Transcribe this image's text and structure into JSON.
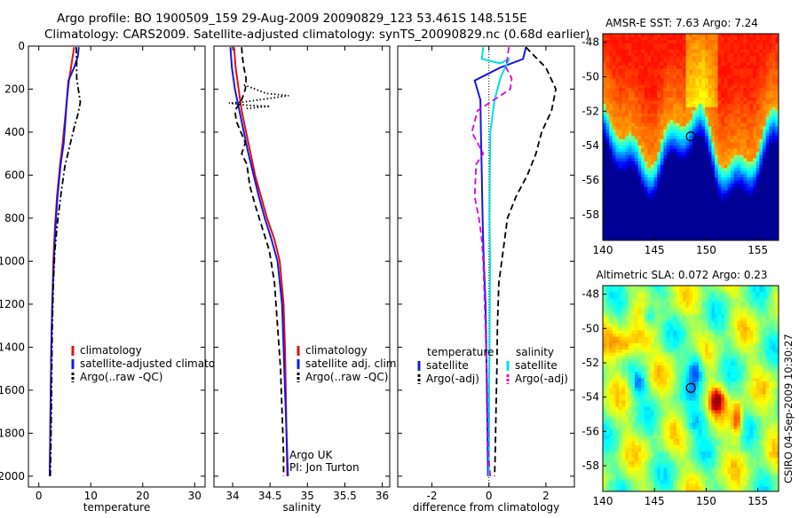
{
  "header": {
    "line1": "Argo profile: BO 1900509_159 29-Aug-2009 20090829_123 53.461S 148.515E",
    "line2": "Climatology: CARS2009. Satellite-adjusted climatology: synTS_20090829.nc (0.68d earlier)"
  },
  "credit": "CSIRO 04-Sep-2009 10:30:27",
  "colors": {
    "climatology": "#e01010",
    "satellite": "#1818e0",
    "argo": "#000000",
    "sat_salinity": "#00e0e0",
    "argo_salinity": "#e000e0"
  },
  "chart_data": [
    {
      "type": "line",
      "id": "temperature",
      "xlabel": "temperature",
      "ylabel": "",
      "xlim": [
        -2,
        32
      ],
      "ylim": [
        2050,
        0
      ],
      "y_reversed": true,
      "xticks": [
        "0",
        "10",
        "20",
        "30"
      ],
      "yticks": [
        "0",
        "200",
        "400",
        "600",
        "800",
        "1000",
        "1200",
        "1400",
        "1600",
        "1800",
        "2000"
      ],
      "legend": [
        "climatology",
        "satellite-adjusted climatology",
        "Argo(..raw -QC)"
      ],
      "series": [
        {
          "name": "climatology",
          "color": "#e01010",
          "style": "solid",
          "points": [
            [
              6.8,
              5
            ],
            [
              6.5,
              50
            ],
            [
              6.2,
              100
            ],
            [
              5.8,
              160
            ],
            [
              5.4,
              250
            ],
            [
              5.0,
              350
            ],
            [
              4.6,
              450
            ],
            [
              4.1,
              550
            ],
            [
              3.5,
              700
            ],
            [
              3.1,
              850
            ],
            [
              2.8,
              1000
            ],
            [
              2.6,
              1200
            ],
            [
              2.4,
              1400
            ],
            [
              2.3,
              1600
            ],
            [
              2.2,
              1800
            ],
            [
              2.1,
              2000
            ]
          ]
        },
        {
          "name": "satellite-adjusted climatology",
          "color": "#1818e0",
          "style": "solid",
          "points": [
            [
              7.7,
              5
            ],
            [
              7.5,
              50
            ],
            [
              6.8,
              100
            ],
            [
              5.7,
              160
            ],
            [
              5.4,
              250
            ],
            [
              5.1,
              350
            ],
            [
              4.8,
              450
            ],
            [
              4.2,
              550
            ],
            [
              3.6,
              700
            ],
            [
              3.2,
              850
            ],
            [
              2.9,
              1000
            ],
            [
              2.6,
              1200
            ],
            [
              2.4,
              1400
            ],
            [
              2.3,
              1600
            ],
            [
              2.2,
              1800
            ],
            [
              2.1,
              2000
            ]
          ]
        },
        {
          "name": "Argo(..raw -QC)",
          "color": "#000000",
          "style": "dashdot",
          "points": [
            [
              7.2,
              5
            ],
            [
              7.3,
              80
            ],
            [
              7.3,
              150
            ],
            [
              7.6,
              200
            ],
            [
              8.0,
              260
            ],
            [
              7.5,
              320
            ],
            [
              6.8,
              380
            ],
            [
              5.9,
              470
            ],
            [
              5.0,
              560
            ],
            [
              4.3,
              680
            ],
            [
              3.6,
              820
            ],
            [
              3.1,
              950
            ],
            [
              2.8,
              1100
            ],
            [
              2.6,
              1300
            ],
            [
              2.5,
              1500
            ],
            [
              2.4,
              1700
            ],
            [
              2.3,
              1900
            ],
            [
              2.2,
              2000
            ]
          ]
        }
      ]
    },
    {
      "type": "line",
      "id": "salinity",
      "xlabel": "salinity",
      "ylabel": "",
      "xlim": [
        33.75,
        36.1
      ],
      "ylim": [
        2050,
        0
      ],
      "y_reversed": true,
      "xticks": [
        "34",
        "34.5",
        "35",
        "35.5",
        "36"
      ],
      "legend": [
        "climatology",
        "satellite adj. clim.",
        "Argo(..raw -QC)"
      ],
      "annotation": [
        "Argo UK",
        "PI: Jon Turton"
      ],
      "series": [
        {
          "name": "climatology",
          "color": "#e01010",
          "style": "solid",
          "points": [
            [
              34.02,
              5
            ],
            [
              34.04,
              100
            ],
            [
              34.08,
              200
            ],
            [
              34.12,
              300
            ],
            [
              34.18,
              400
            ],
            [
              34.24,
              500
            ],
            [
              34.3,
              600
            ],
            [
              34.38,
              700
            ],
            [
              34.46,
              800
            ],
            [
              34.56,
              900
            ],
            [
              34.63,
              1000
            ],
            [
              34.68,
              1200
            ],
            [
              34.7,
              1400
            ],
            [
              34.71,
              1600
            ],
            [
              34.72,
              1800
            ],
            [
              34.73,
              2000
            ]
          ]
        },
        {
          "name": "satellite adj. clim.",
          "color": "#1818e0",
          "style": "solid",
          "points": [
            [
              33.97,
              5
            ],
            [
              33.99,
              100
            ],
            [
              34.03,
              200
            ],
            [
              34.09,
              300
            ],
            [
              34.15,
              400
            ],
            [
              34.21,
              500
            ],
            [
              34.28,
              600
            ],
            [
              34.35,
              700
            ],
            [
              34.43,
              800
            ],
            [
              34.52,
              900
            ],
            [
              34.6,
              1000
            ],
            [
              34.66,
              1200
            ],
            [
              34.68,
              1400
            ],
            [
              34.7,
              1600
            ],
            [
              34.72,
              1800
            ],
            [
              34.74,
              2000
            ]
          ]
        },
        {
          "name": "Argo(..raw -QC)",
          "color": "#000000",
          "style": "dashed",
          "points": [
            [
              34.12,
              5
            ],
            [
              34.13,
              50
            ],
            [
              34.15,
              100
            ],
            [
              34.18,
              150
            ],
            [
              34.17,
              200
            ],
            [
              34.12,
              250
            ],
            [
              34.03,
              300
            ],
            [
              34.05,
              350
            ],
            [
              34.11,
              400
            ],
            [
              34.17,
              450
            ],
            [
              34.12,
              500
            ],
            [
              34.19,
              550
            ],
            [
              34.23,
              650
            ],
            [
              34.31,
              750
            ],
            [
              34.4,
              850
            ],
            [
              34.49,
              950
            ],
            [
              34.56,
              1100
            ],
            [
              34.6,
              1300
            ],
            [
              34.64,
              1500
            ],
            [
              34.66,
              1700
            ],
            [
              34.68,
              1900
            ],
            [
              34.68,
              2000
            ]
          ]
        },
        {
          "name": "Argo spike",
          "color": "#000000",
          "style": "dotted",
          "points": [
            [
              34.15,
              180
            ],
            [
              34.45,
              220
            ],
            [
              34.75,
              230
            ],
            [
              34.15,
              260
            ],
            [
              33.95,
              265
            ],
            [
              34.2,
              275
            ],
            [
              34.5,
              280
            ],
            [
              34.18,
              290
            ]
          ]
        }
      ]
    },
    {
      "type": "line",
      "id": "difference",
      "xlabel": "difference from climatology",
      "ylabel": "",
      "xlim": [
        -3.2,
        3.0
      ],
      "ylim": [
        2050,
        0
      ],
      "y_reversed": true,
      "xticks": [
        "-2",
        "0",
        "2"
      ],
      "legend_groups": [
        {
          "title": "temperature",
          "items": [
            "satellite",
            "Argo(-adj)"
          ]
        },
        {
          "title": "salinity",
          "items": [
            "satellite",
            "Argo(-adj)"
          ]
        }
      ],
      "series": [
        {
          "name": "temperature satellite",
          "color": "#1818e0",
          "style": "solid",
          "points": [
            [
              1.3,
              5
            ],
            [
              1.2,
              60
            ],
            [
              0.4,
              100
            ],
            [
              -0.5,
              160
            ],
            [
              -0.3,
              250
            ],
            [
              -0.28,
              400
            ],
            [
              -0.25,
              600
            ],
            [
              -0.22,
              800
            ],
            [
              -0.18,
              1000
            ],
            [
              -0.12,
              1200
            ],
            [
              -0.08,
              1500
            ],
            [
              -0.05,
              1800
            ],
            [
              -0.03,
              2000
            ]
          ]
        },
        {
          "name": "temperature Argo(-adj)",
          "color": "#000000",
          "style": "dashed",
          "points": [
            [
              1.3,
              5
            ],
            [
              1.55,
              40
            ],
            [
              2.0,
              100
            ],
            [
              2.35,
              200
            ],
            [
              2.2,
              300
            ],
            [
              1.85,
              400
            ],
            [
              1.65,
              500
            ],
            [
              1.35,
              600
            ],
            [
              0.95,
              700
            ],
            [
              0.65,
              800
            ],
            [
              0.5,
              950
            ],
            [
              0.35,
              1100
            ],
            [
              0.3,
              1300
            ],
            [
              0.28,
              1500
            ],
            [
              0.25,
              1700
            ],
            [
              0.22,
              1900
            ],
            [
              0.2,
              2000
            ]
          ]
        },
        {
          "name": "salinity satellite",
          "color": "#00e0e0",
          "style": "solid",
          "points": [
            [
              -0.2,
              5
            ],
            [
              -0.25,
              60
            ],
            [
              0.4,
              80
            ],
            [
              0.7,
              60
            ],
            [
              0.4,
              150
            ],
            [
              0.2,
              250
            ],
            [
              0.05,
              400
            ],
            [
              0.03,
              600
            ],
            [
              0.02,
              800
            ],
            [
              0.04,
              1000
            ],
            [
              0.03,
              1200
            ],
            [
              0.02,
              1400
            ],
            [
              0.01,
              1600
            ],
            [
              0.01,
              1800
            ],
            [
              0.0,
              2000
            ]
          ]
        },
        {
          "name": "salinity Argo(-adj)",
          "color": "#e000e0",
          "style": "dashed",
          "points": [
            [
              0.7,
              5
            ],
            [
              0.6,
              100
            ],
            [
              0.8,
              150
            ],
            [
              0.75,
              200
            ],
            [
              -0.4,
              300
            ],
            [
              -0.6,
              400
            ],
            [
              -0.2,
              500
            ],
            [
              -0.45,
              550
            ],
            [
              -0.5,
              700
            ],
            [
              -0.35,
              800
            ],
            [
              -0.25,
              900
            ],
            [
              -0.2,
              1000
            ],
            [
              -0.15,
              1200
            ],
            [
              -0.1,
              1400
            ],
            [
              -0.05,
              1600
            ],
            [
              -0.03,
              1800
            ],
            [
              -0.02,
              1900
            ],
            [
              0.05,
              2000
            ]
          ]
        }
      ]
    },
    {
      "type": "heatmap",
      "id": "sst-map",
      "title": "AMSR-E SST: 7.63 Argo: 7.24",
      "xlim": [
        140,
        157
      ],
      "ylim": [
        -59.5,
        -47.5
      ],
      "xticks": [
        "140",
        "145",
        "150",
        "155"
      ],
      "yticks": [
        "-48",
        "-50",
        "-52",
        "-54",
        "-56",
        "-58"
      ],
      "marker": {
        "lon": 148.515,
        "lat": -53.461
      }
    },
    {
      "type": "heatmap",
      "id": "sla-map",
      "title": "Altimetric SLA: 0.072 Argo: 0.23",
      "xlim": [
        140,
        157
      ],
      "ylim": [
        -59.5,
        -47.5
      ],
      "xticks": [
        "140",
        "145",
        "150",
        "155"
      ],
      "yticks": [
        "-48",
        "-50",
        "-52",
        "-54",
        "-56",
        "-58"
      ],
      "marker": {
        "lon": 148.515,
        "lat": -53.461
      }
    }
  ]
}
